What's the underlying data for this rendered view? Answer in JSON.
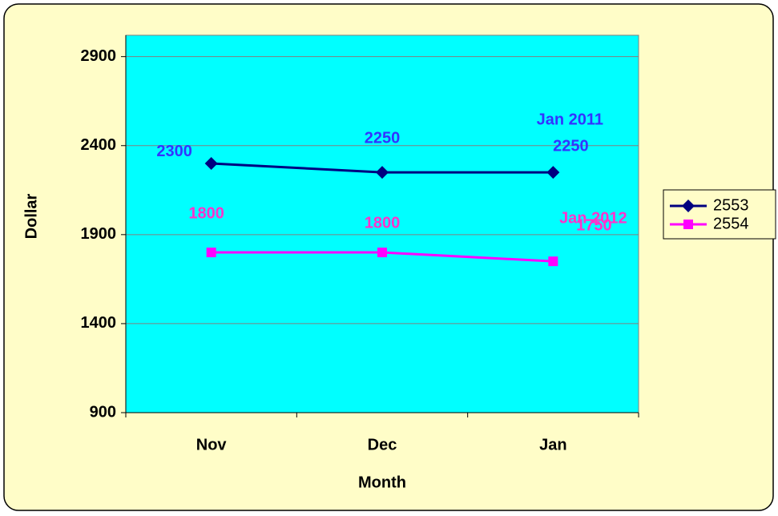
{
  "chart_data": {
    "type": "line",
    "categories": [
      "Nov",
      "Dec",
      "Jan"
    ],
    "series": [
      {
        "name": "2553",
        "color": "#000080",
        "label_color": "#3333ff",
        "marker": "diamond",
        "values": [
          2300,
          2250,
          2250
        ]
      },
      {
        "name": "2554",
        "color": "#ff00ff",
        "label_color": "#ff33cc",
        "marker": "square",
        "values": [
          1800,
          1800,
          1750
        ]
      }
    ],
    "annotations": [
      "Jan 2011",
      "Jan 2012"
    ],
    "xlabel": "Month",
    "ylabel": "Dollar",
    "ylim": [
      900,
      3020
    ],
    "yticks": [
      900,
      1400,
      1900,
      2400,
      2900
    ],
    "grid": true,
    "legend": "right",
    "plot_background": "#00ffff"
  }
}
